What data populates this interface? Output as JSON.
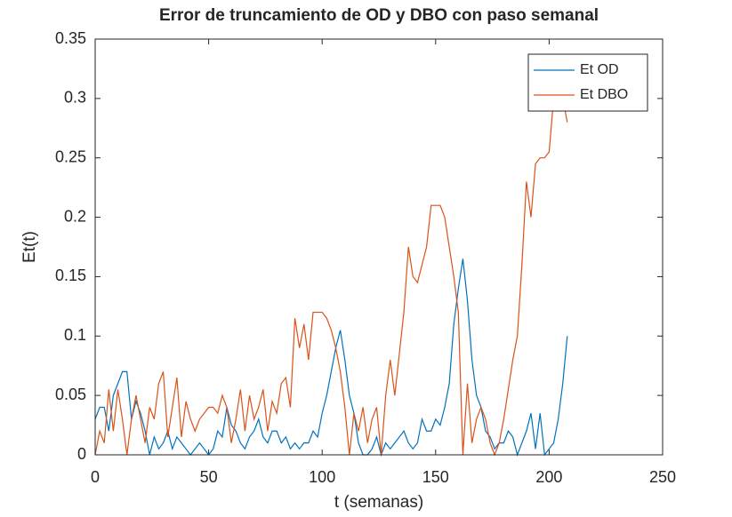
{
  "chart_data": {
    "type": "line",
    "title": "Error de truncamiento de OD y DBO con paso semanal",
    "x_label": "t (semanas)",
    "y_label": "Et(t)",
    "x": [
      0,
      2,
      4,
      6,
      8,
      10,
      12,
      14,
      16,
      18,
      20,
      22,
      24,
      26,
      28,
      30,
      32,
      34,
      36,
      38,
      40,
      42,
      44,
      46,
      48,
      50,
      52,
      54,
      56,
      58,
      60,
      62,
      64,
      66,
      68,
      70,
      72,
      74,
      76,
      78,
      80,
      82,
      84,
      86,
      88,
      90,
      92,
      94,
      96,
      98,
      100,
      102,
      104,
      106,
      108,
      110,
      112,
      114,
      116,
      118,
      120,
      122,
      124,
      126,
      128,
      130,
      132,
      134,
      136,
      138,
      140,
      142,
      144,
      146,
      148,
      150,
      152,
      154,
      156,
      158,
      160,
      162,
      164,
      166,
      168,
      170,
      172,
      174,
      176,
      178,
      180,
      182,
      184,
      186,
      188,
      190,
      192,
      194,
      196,
      198,
      200,
      202,
      204,
      206,
      208
    ],
    "series": [
      {
        "name": "Et OD",
        "color": "#0072bd",
        "values": [
          0.03,
          0.04,
          0.04,
          0.02,
          0.05,
          0.06,
          0.07,
          0.07,
          0.03,
          0.045,
          0.035,
          0.02,
          0.0,
          0.015,
          0.005,
          0.01,
          0.02,
          0.005,
          0.015,
          0.01,
          0.005,
          0.0,
          0.005,
          0.01,
          0.005,
          0.0,
          0.005,
          0.02,
          0.015,
          0.04,
          0.025,
          0.02,
          0.01,
          0.005,
          0.015,
          0.02,
          0.03,
          0.015,
          0.01,
          0.02,
          0.02,
          0.01,
          0.015,
          0.005,
          0.01,
          0.005,
          0.01,
          0.01,
          0.02,
          0.015,
          0.035,
          0.05,
          0.07,
          0.09,
          0.105,
          0.08,
          0.05,
          0.035,
          0.01,
          0.0,
          0.0,
          0.005,
          0.015,
          0.0,
          0.01,
          0.005,
          0.01,
          0.015,
          0.02,
          0.01,
          0.005,
          0.01,
          0.03,
          0.02,
          0.02,
          0.03,
          0.025,
          0.04,
          0.06,
          0.11,
          0.14,
          0.165,
          0.13,
          0.08,
          0.05,
          0.04,
          0.02,
          0.015,
          0.005,
          0.01,
          0.01,
          0.02,
          0.015,
          0.0,
          0.01,
          0.02,
          0.035,
          0.005,
          0.035,
          0.0,
          0.005,
          0.01,
          0.03,
          0.06,
          0.1
        ]
      },
      {
        "name": "Et DBO",
        "color": "#d95319",
        "values": [
          0.0,
          0.02,
          0.01,
          0.055,
          0.02,
          0.055,
          0.03,
          0.0,
          0.03,
          0.05,
          0.03,
          0.01,
          0.04,
          0.03,
          0.06,
          0.07,
          0.015,
          0.04,
          0.065,
          0.015,
          0.045,
          0.03,
          0.02,
          0.03,
          0.035,
          0.04,
          0.04,
          0.035,
          0.05,
          0.04,
          0.01,
          0.03,
          0.055,
          0.02,
          0.05,
          0.03,
          0.04,
          0.055,
          0.02,
          0.045,
          0.035,
          0.06,
          0.065,
          0.04,
          0.115,
          0.09,
          0.11,
          0.08,
          0.12,
          0.12,
          0.12,
          0.115,
          0.105,
          0.09,
          0.07,
          0.04,
          0.0,
          0.035,
          0.02,
          0.04,
          0.01,
          0.03,
          0.04,
          0.0,
          0.05,
          0.08,
          0.05,
          0.085,
          0.12,
          0.175,
          0.15,
          0.145,
          0.16,
          0.175,
          0.21,
          0.21,
          0.21,
          0.2,
          0.175,
          0.15,
          0.12,
          0.0,
          0.06,
          0.01,
          0.03,
          0.04,
          0.03,
          0.01,
          0.0,
          0.01,
          0.03,
          0.055,
          0.08,
          0.1,
          0.16,
          0.23,
          0.2,
          0.245,
          0.25,
          0.25,
          0.255,
          0.3,
          0.32,
          0.3,
          0.28
        ]
      }
    ],
    "xlim": [
      0,
      250
    ],
    "xticks": [
      0,
      50,
      100,
      150,
      200,
      250
    ],
    "ylim": [
      0,
      0.35
    ],
    "yticks": [
      0,
      0.05,
      0.1,
      0.15,
      0.2,
      0.25,
      0.3,
      0.35
    ],
    "legend": "top-right"
  }
}
